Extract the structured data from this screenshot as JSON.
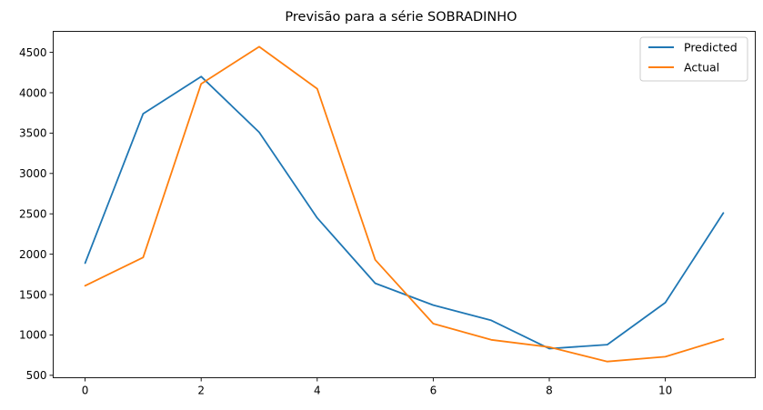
{
  "chart_data": {
    "type": "line",
    "title": "Previsão para a série SOBRADINHO",
    "xlabel": "",
    "ylabel": "",
    "x": [
      0,
      1,
      2,
      3,
      4,
      5,
      6,
      7,
      8,
      9,
      10,
      11
    ],
    "xlim": [
      -0.55,
      11.55
    ],
    "ylim": [
      470,
      4760
    ],
    "xticks": [
      0,
      2,
      4,
      6,
      8,
      10
    ],
    "yticks": [
      500,
      1000,
      1500,
      2000,
      2500,
      3000,
      3500,
      4000,
      4500
    ],
    "grid": false,
    "legend_position": "top-right",
    "series": [
      {
        "name": "Predicted",
        "color": "#1f77b4",
        "values": [
          1890,
          3740,
          4200,
          3510,
          2450,
          1640,
          1370,
          1180,
          830,
          880,
          1400,
          2510
        ]
      },
      {
        "name": "Actual",
        "color": "#ff7f0e",
        "values": [
          1610,
          1960,
          4110,
          4570,
          4050,
          1930,
          1140,
          940,
          850,
          670,
          730,
          950
        ]
      }
    ]
  }
}
